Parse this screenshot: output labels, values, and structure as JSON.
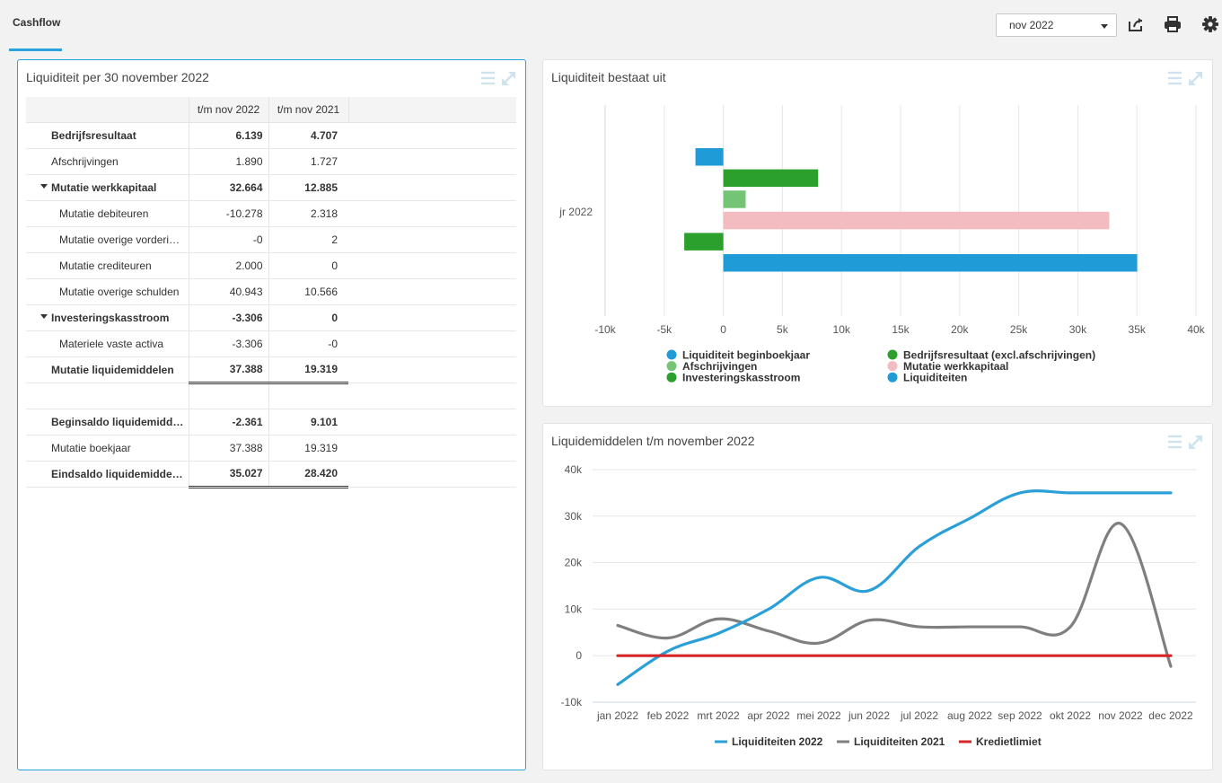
{
  "app": {
    "tab_label": "Cashflow",
    "period_select": "nov 2022"
  },
  "toolbar": {
    "share_icon": "share-icon",
    "print_icon": "print-icon",
    "settings_icon": "gear-icon"
  },
  "table_panel": {
    "title": "Liquiditeit per 30 november 2022",
    "headers": [
      "",
      "t/m nov 2022",
      "t/m nov 2021"
    ],
    "rows": [
      {
        "label": "Bedrijfsresultaat",
        "v1": "6.139",
        "v2": "4.707",
        "bold": true
      },
      {
        "label": "Afschrijvingen",
        "v1": "1.890",
        "v2": "1.727"
      },
      {
        "label": "Mutatie werkkapitaal",
        "v1": "32.664",
        "v2": "12.885",
        "bold": true,
        "expanded": true
      },
      {
        "label": "Mutatie debiteuren",
        "v1": "-10.278",
        "v2": "2.318",
        "level": 2
      },
      {
        "label": "Mutatie overige vorderi…",
        "v1": "-0",
        "v2": "2",
        "level": 2
      },
      {
        "label": "Mutatie crediteuren",
        "v1": "2.000",
        "v2": "0",
        "level": 2
      },
      {
        "label": "Mutatie overige schulden",
        "v1": "40.943",
        "v2": "10.566",
        "level": 2
      },
      {
        "label": "Investeringskasstroom",
        "v1": "-3.306",
        "v2": "0",
        "bold": true,
        "expanded": true
      },
      {
        "label": "Materiele vaste activa",
        "v1": "-3.306",
        "v2": "-0",
        "level": 2
      },
      {
        "label": "Mutatie liquidemiddelen",
        "v1": "37.388",
        "v2": "19.319",
        "bold": true,
        "total": true
      },
      {
        "label": "",
        "v1": "",
        "v2": ""
      },
      {
        "label": "Beginsaldo liquidemidd…",
        "v1": "-2.361",
        "v2": "9.101",
        "bold": true
      },
      {
        "label": "Mutatie boekjaar",
        "v1": "37.388",
        "v2": "19.319"
      },
      {
        "label": "Eindsaldo liquidemidde…",
        "v1": "35.027",
        "v2": "28.420",
        "bold": true,
        "total": true
      }
    ]
  },
  "bar_panel": {
    "title": "Liquiditeit bestaat uit"
  },
  "line_panel": {
    "title": "Liquidemiddelen t/m november 2022"
  },
  "chart_data": [
    {
      "type": "bar",
      "orientation": "horizontal",
      "title": "Liquiditeit bestaat uit",
      "categories": [
        "jr 2022"
      ],
      "xlim": [
        -10000,
        40000
      ],
      "xticks": [
        -10000,
        -5000,
        0,
        5000,
        10000,
        15000,
        20000,
        25000,
        30000,
        35000,
        40000
      ],
      "xtick_labels": [
        "-10k",
        "-5k",
        "0",
        "5k",
        "10k",
        "15k",
        "20k",
        "25k",
        "30k",
        "35k",
        "40k"
      ],
      "series": [
        {
          "name": "Liquiditeit beginboekjaar",
          "value": -2361,
          "color": "#1f9bd7"
        },
        {
          "name": "Bedrijfsresultaat (excl.afschrijvingen)",
          "value": 8029,
          "color": "#2ca02c"
        },
        {
          "name": "Afschrijvingen",
          "value": 1890,
          "color": "#74c476"
        },
        {
          "name": "Mutatie werkkapitaal",
          "value": 32664,
          "color": "#f2bcc0"
        },
        {
          "name": "Investeringskasstroom",
          "value": -3306,
          "color": "#2ca02c"
        },
        {
          "name": "Liquiditeiten",
          "value": 35027,
          "color": "#1f9bd7"
        }
      ],
      "legend_order": [
        0,
        1,
        2,
        3,
        4,
        5
      ],
      "legend_position": "bottom"
    },
    {
      "type": "line",
      "title": "Liquidemiddelen t/m november 2022",
      "categories": [
        "jan 2022",
        "feb 2022",
        "mrt 2022",
        "apr 2022",
        "mei 2022",
        "jun 2022",
        "jul 2022",
        "aug 2022",
        "sep 2022",
        "okt 2022",
        "nov 2022",
        "dec 2022"
      ],
      "ylim": [
        -10000,
        40000
      ],
      "yticks": [
        -10000,
        0,
        10000,
        20000,
        30000,
        40000
      ],
      "ytick_labels": [
        "-10k",
        "0",
        "10k",
        "20k",
        "30k",
        "40k"
      ],
      "series": [
        {
          "name": "Liquiditeiten 2022",
          "color": "#2a9fd8",
          "values": [
            -6200,
            1000,
            4800,
            10000,
            16800,
            14000,
            23500,
            29500,
            35000,
            35000,
            35000,
            35000
          ]
        },
        {
          "name": "Liquiditeiten 2021",
          "color": "#7f7f7f",
          "values": [
            6500,
            3800,
            7900,
            5300,
            2700,
            7600,
            6200,
            6200,
            6200,
            6200,
            28400,
            -2300
          ]
        },
        {
          "name": "Kredietlimiet",
          "color": "#d62728",
          "values": [
            0,
            0,
            0,
            0,
            0,
            0,
            0,
            0,
            0,
            0,
            0,
            0
          ]
        }
      ],
      "legend_position": "bottom"
    }
  ]
}
